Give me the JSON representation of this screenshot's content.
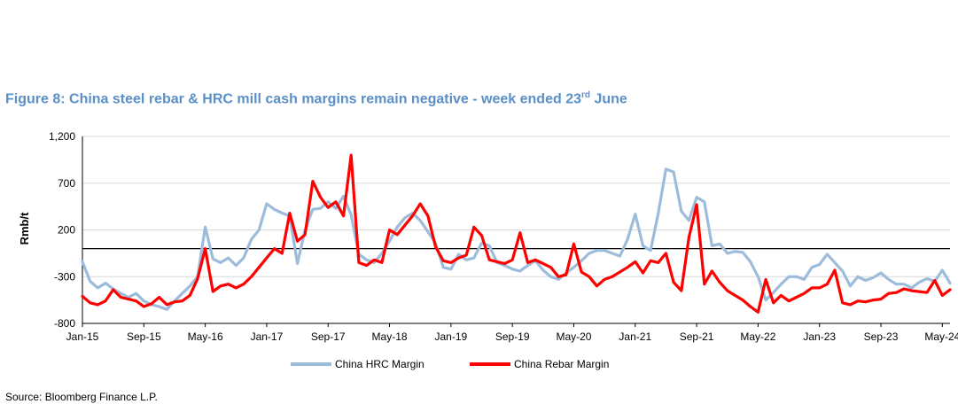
{
  "title": {
    "text": "Figure 8: China steel rebar & HRC mill cash margins remain negative - week ended 23",
    "superscript": "rd",
    "suffix": " June"
  },
  "source": "Source: Bloomberg Finance L.P.",
  "colors": {
    "title": "#5b8fc7",
    "hrc": "#9dbcdc",
    "rebar": "#ff0000"
  },
  "chart_data": {
    "type": "line",
    "ylabel": "Rmb/t",
    "xlabel": "",
    "ylim": [
      -800,
      1200
    ],
    "yticks": [
      1200,
      700,
      200,
      -300,
      -800
    ],
    "ytick_labels": [
      "1,200",
      "700",
      "200",
      "-300",
      "-800"
    ],
    "xlim": [
      "2015-01",
      "2024-06"
    ],
    "xtick_labels": [
      "Jan-15",
      "Sep-15",
      "May-16",
      "Jan-17",
      "Sep-17",
      "May-18",
      "Jan-19",
      "Sep-19",
      "May-20",
      "Jan-21",
      "Sep-21",
      "May-22",
      "Jan-23",
      "Sep-23",
      "May-24"
    ],
    "zero_line": true,
    "grid": "horizontal",
    "legend_position": "bottom",
    "series": [
      {
        "name": "China HRC Margin",
        "color": "#9dbcdc",
        "points": [
          [
            "2015-01",
            -140
          ],
          [
            "2015-02",
            -350
          ],
          [
            "2015-03",
            -420
          ],
          [
            "2015-04",
            -370
          ],
          [
            "2015-05",
            -430
          ],
          [
            "2015-06",
            -480
          ],
          [
            "2015-07",
            -520
          ],
          [
            "2015-08",
            -480
          ],
          [
            "2015-09",
            -560
          ],
          [
            "2015-10",
            -600
          ],
          [
            "2015-11",
            -620
          ],
          [
            "2015-12",
            -650
          ],
          [
            "2016-01",
            -560
          ],
          [
            "2016-02",
            -480
          ],
          [
            "2016-03",
            -400
          ],
          [
            "2016-04",
            -300
          ],
          [
            "2016-05",
            230
          ],
          [
            "2016-06",
            -110
          ],
          [
            "2016-07",
            -150
          ],
          [
            "2016-08",
            -100
          ],
          [
            "2016-09",
            -180
          ],
          [
            "2016-10",
            -100
          ],
          [
            "2016-11",
            100
          ],
          [
            "2016-12",
            200
          ],
          [
            "2017-01",
            480
          ],
          [
            "2017-02",
            420
          ],
          [
            "2017-03",
            380
          ],
          [
            "2017-04",
            350
          ],
          [
            "2017-05",
            -160
          ],
          [
            "2017-06",
            200
          ],
          [
            "2017-07",
            420
          ],
          [
            "2017-08",
            430
          ],
          [
            "2017-09",
            500
          ],
          [
            "2017-10",
            430
          ],
          [
            "2017-11",
            560
          ],
          [
            "2017-12",
            360
          ],
          [
            "2018-01",
            -60
          ],
          [
            "2018-02",
            -120
          ],
          [
            "2018-03",
            -150
          ],
          [
            "2018-04",
            -50
          ],
          [
            "2018-05",
            80
          ],
          [
            "2018-06",
            230
          ],
          [
            "2018-07",
            330
          ],
          [
            "2018-08",
            380
          ],
          [
            "2018-09",
            300
          ],
          [
            "2018-10",
            180
          ],
          [
            "2018-11",
            60
          ],
          [
            "2018-12",
            -200
          ],
          [
            "2019-01",
            -220
          ],
          [
            "2019-02",
            -60
          ],
          [
            "2019-03",
            -120
          ],
          [
            "2019-04",
            -100
          ],
          [
            "2019-05",
            60
          ],
          [
            "2019-06",
            30
          ],
          [
            "2019-07",
            -150
          ],
          [
            "2019-08",
            -180
          ],
          [
            "2019-09",
            -220
          ],
          [
            "2019-10",
            -240
          ],
          [
            "2019-11",
            -180
          ],
          [
            "2019-12",
            -130
          ],
          [
            "2020-01",
            -230
          ],
          [
            "2020-02",
            -300
          ],
          [
            "2020-03",
            -330
          ],
          [
            "2020-04",
            -260
          ],
          [
            "2020-05",
            -200
          ],
          [
            "2020-06",
            -130
          ],
          [
            "2020-07",
            -50
          ],
          [
            "2020-08",
            -20
          ],
          [
            "2020-09",
            -20
          ],
          [
            "2020-10",
            -50
          ],
          [
            "2020-11",
            -80
          ],
          [
            "2020-12",
            100
          ],
          [
            "2021-01",
            370
          ],
          [
            "2021-02",
            30
          ],
          [
            "2021-03",
            -20
          ],
          [
            "2021-04",
            380
          ],
          [
            "2021-05",
            850
          ],
          [
            "2021-06",
            820
          ],
          [
            "2021-07",
            400
          ],
          [
            "2021-08",
            300
          ],
          [
            "2021-09",
            550
          ],
          [
            "2021-10",
            500
          ],
          [
            "2021-11",
            30
          ],
          [
            "2021-12",
            50
          ],
          [
            "2022-01",
            -50
          ],
          [
            "2022-02",
            -30
          ],
          [
            "2022-03",
            -40
          ],
          [
            "2022-04",
            -140
          ],
          [
            "2022-05",
            -300
          ],
          [
            "2022-06",
            -550
          ],
          [
            "2022-07",
            -470
          ],
          [
            "2022-08",
            -380
          ],
          [
            "2022-09",
            -300
          ],
          [
            "2022-10",
            -300
          ],
          [
            "2022-11",
            -330
          ],
          [
            "2022-12",
            -200
          ],
          [
            "2023-01",
            -170
          ],
          [
            "2023-02",
            -60
          ],
          [
            "2023-03",
            -150
          ],
          [
            "2023-04",
            -240
          ],
          [
            "2023-05",
            -400
          ],
          [
            "2023-06",
            -300
          ],
          [
            "2023-07",
            -340
          ],
          [
            "2023-08",
            -310
          ],
          [
            "2023-09",
            -260
          ],
          [
            "2023-10",
            -330
          ],
          [
            "2023-11",
            -380
          ],
          [
            "2023-12",
            -380
          ],
          [
            "2024-01",
            -420
          ],
          [
            "2024-02",
            -360
          ],
          [
            "2024-03",
            -320
          ],
          [
            "2024-04",
            -350
          ],
          [
            "2024-05",
            -230
          ],
          [
            "2024-06",
            -370
          ]
        ]
      },
      {
        "name": "China Rebar Margin",
        "color": "#ff0000",
        "points": [
          [
            "2015-01",
            -510
          ],
          [
            "2015-02",
            -580
          ],
          [
            "2015-03",
            -600
          ],
          [
            "2015-04",
            -560
          ],
          [
            "2015-05",
            -440
          ],
          [
            "2015-06",
            -520
          ],
          [
            "2015-07",
            -540
          ],
          [
            "2015-08",
            -560
          ],
          [
            "2015-09",
            -620
          ],
          [
            "2015-10",
            -590
          ],
          [
            "2015-11",
            -520
          ],
          [
            "2015-12",
            -600
          ],
          [
            "2016-01",
            -570
          ],
          [
            "2016-02",
            -560
          ],
          [
            "2016-03",
            -500
          ],
          [
            "2016-04",
            -320
          ],
          [
            "2016-05",
            0
          ],
          [
            "2016-06",
            -460
          ],
          [
            "2016-07",
            -400
          ],
          [
            "2016-08",
            -380
          ],
          [
            "2016-09",
            -420
          ],
          [
            "2016-10",
            -380
          ],
          [
            "2016-11",
            -300
          ],
          [
            "2016-12",
            -200
          ],
          [
            "2017-01",
            -100
          ],
          [
            "2017-02",
            0
          ],
          [
            "2017-03",
            -50
          ],
          [
            "2017-04",
            380
          ],
          [
            "2017-05",
            80
          ],
          [
            "2017-06",
            150
          ],
          [
            "2017-07",
            720
          ],
          [
            "2017-08",
            550
          ],
          [
            "2017-09",
            440
          ],
          [
            "2017-10",
            500
          ],
          [
            "2017-11",
            350
          ],
          [
            "2017-12",
            1000
          ],
          [
            "2018-01",
            -150
          ],
          [
            "2018-02",
            -180
          ],
          [
            "2018-03",
            -120
          ],
          [
            "2018-04",
            -150
          ],
          [
            "2018-05",
            200
          ],
          [
            "2018-06",
            150
          ],
          [
            "2018-07",
            250
          ],
          [
            "2018-08",
            350
          ],
          [
            "2018-09",
            480
          ],
          [
            "2018-10",
            350
          ],
          [
            "2018-11",
            20
          ],
          [
            "2018-12",
            -130
          ],
          [
            "2019-01",
            -150
          ],
          [
            "2019-02",
            -100
          ],
          [
            "2019-03",
            -70
          ],
          [
            "2019-04",
            230
          ],
          [
            "2019-05",
            140
          ],
          [
            "2019-06",
            -120
          ],
          [
            "2019-07",
            -140
          ],
          [
            "2019-08",
            -160
          ],
          [
            "2019-09",
            -120
          ],
          [
            "2019-10",
            170
          ],
          [
            "2019-11",
            -150
          ],
          [
            "2019-12",
            -120
          ],
          [
            "2020-01",
            -160
          ],
          [
            "2020-02",
            -200
          ],
          [
            "2020-03",
            -300
          ],
          [
            "2020-04",
            -280
          ],
          [
            "2020-05",
            50
          ],
          [
            "2020-06",
            -250
          ],
          [
            "2020-07",
            -300
          ],
          [
            "2020-08",
            -400
          ],
          [
            "2020-09",
            -330
          ],
          [
            "2020-10",
            -300
          ],
          [
            "2020-11",
            -250
          ],
          [
            "2020-12",
            -200
          ],
          [
            "2021-01",
            -140
          ],
          [
            "2021-02",
            -260
          ],
          [
            "2021-03",
            -130
          ],
          [
            "2021-04",
            -150
          ],
          [
            "2021-05",
            -50
          ],
          [
            "2021-06",
            -360
          ],
          [
            "2021-07",
            -450
          ],
          [
            "2021-08",
            120
          ],
          [
            "2021-09",
            470
          ],
          [
            "2021-10",
            -380
          ],
          [
            "2021-11",
            -240
          ],
          [
            "2021-12",
            -360
          ],
          [
            "2022-01",
            -450
          ],
          [
            "2022-02",
            -500
          ],
          [
            "2022-03",
            -550
          ],
          [
            "2022-04",
            -620
          ],
          [
            "2022-05",
            -680
          ],
          [
            "2022-06",
            -330
          ],
          [
            "2022-07",
            -580
          ],
          [
            "2022-08",
            -500
          ],
          [
            "2022-09",
            -560
          ],
          [
            "2022-10",
            -520
          ],
          [
            "2022-11",
            -480
          ],
          [
            "2022-12",
            -420
          ],
          [
            "2023-01",
            -420
          ],
          [
            "2023-02",
            -380
          ],
          [
            "2023-03",
            -230
          ],
          [
            "2023-04",
            -580
          ],
          [
            "2023-05",
            -600
          ],
          [
            "2023-06",
            -560
          ],
          [
            "2023-07",
            -570
          ],
          [
            "2023-08",
            -550
          ],
          [
            "2023-09",
            -540
          ],
          [
            "2023-10",
            -480
          ],
          [
            "2023-11",
            -470
          ],
          [
            "2023-12",
            -430
          ],
          [
            "2024-01",
            -450
          ],
          [
            "2024-02",
            -460
          ],
          [
            "2024-03",
            -470
          ],
          [
            "2024-04",
            -340
          ],
          [
            "2024-05",
            -500
          ],
          [
            "2024-06",
            -440
          ]
        ]
      }
    ]
  }
}
